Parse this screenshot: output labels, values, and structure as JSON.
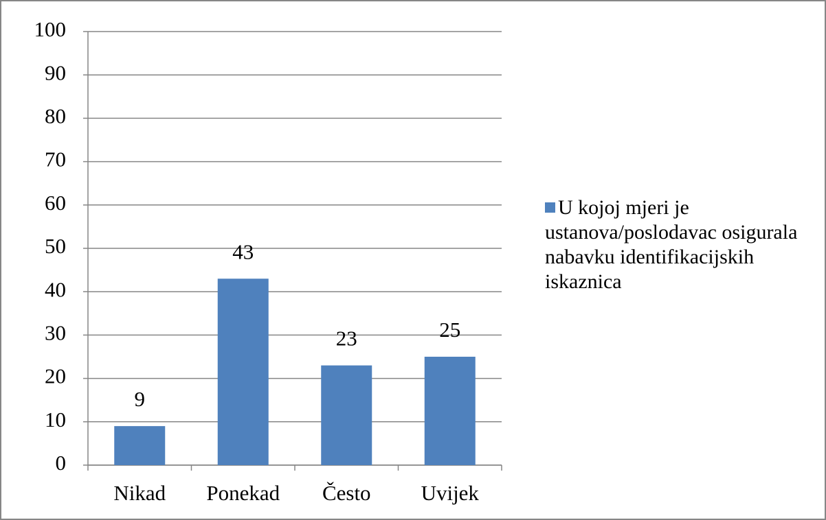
{
  "chart_data": {
    "type": "bar",
    "categories": [
      "Nikad",
      "Ponekad",
      "Često",
      "Uvijek"
    ],
    "series": [
      {
        "name": "U kojoj mjeri je ustanova/poslodavac osigurala nabavku identifikacijskih iskaznica",
        "color": "#4f81bd",
        "values": [
          9,
          43,
          23,
          25
        ]
      }
    ],
    "ylim": [
      0,
      100
    ],
    "yticks": [
      0,
      10,
      20,
      30,
      40,
      50,
      60,
      70,
      80,
      90,
      100
    ],
    "grid": true,
    "legend": "right"
  }
}
